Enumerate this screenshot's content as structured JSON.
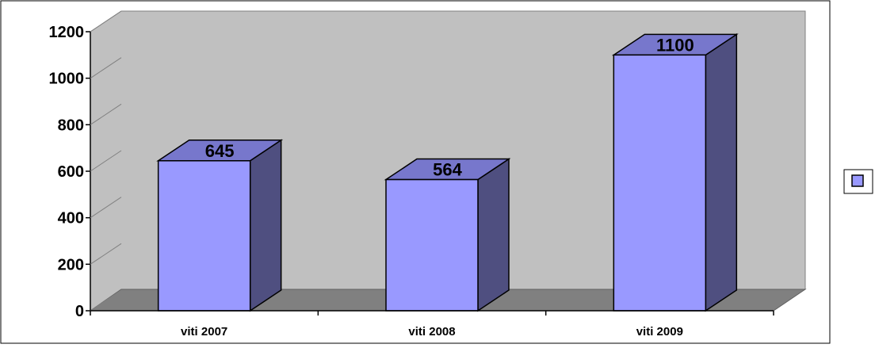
{
  "chart_data": {
    "type": "bar",
    "categories": [
      "viti 2007",
      "viti 2008",
      "viti 2009"
    ],
    "values": [
      645,
      564,
      1100
    ],
    "ylim": [
      0,
      1200
    ],
    "yticks": [
      0,
      200,
      400,
      600,
      800,
      1000,
      1200
    ],
    "legend_position": "right",
    "style": "3d",
    "colors": {
      "bar_front": "#9999FF",
      "bar_top": "#7777CC",
      "bar_side": "#4F4F80",
      "wall": "#C0C0C0",
      "floor": "#808080",
      "border": "#000000"
    }
  }
}
